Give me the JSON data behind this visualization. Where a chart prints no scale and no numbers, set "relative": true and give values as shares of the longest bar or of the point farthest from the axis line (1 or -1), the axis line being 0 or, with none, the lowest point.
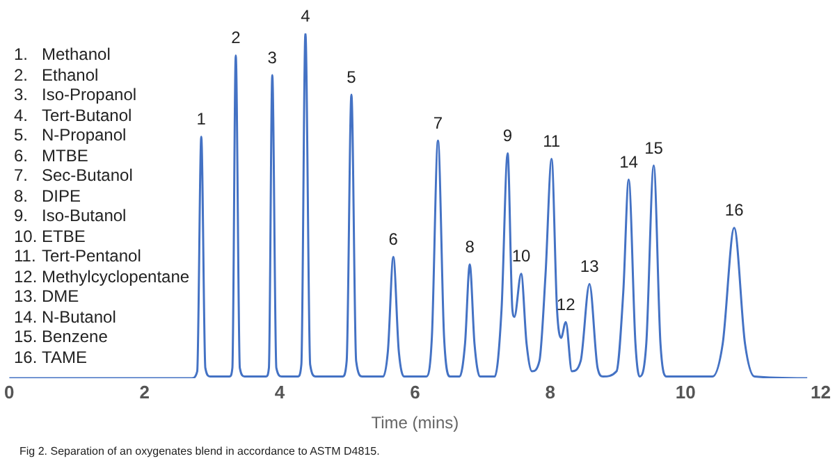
{
  "chart_data": {
    "type": "line",
    "relative": true,
    "xlabel": "Time (mins)",
    "xlim": [
      0,
      12
    ],
    "xticks": [
      0,
      2,
      4,
      6,
      8,
      10,
      12
    ],
    "grid": false,
    "legend": false,
    "marker": "none",
    "line_style": "solid",
    "series": [
      {
        "color": "#4472c4",
        "x": [
          0,
          2.7,
          2.78,
          2.84,
          2.9,
          2.97,
          3.26,
          3.3,
          3.35,
          3.41,
          3.48,
          3.8,
          3.84,
          3.89,
          3.95,
          4.03,
          4.27,
          4.32,
          4.38,
          4.45,
          4.53,
          4.93,
          4.99,
          5.06,
          5.13,
          5.22,
          5.53,
          5.6,
          5.68,
          5.76,
          5.84,
          6.17,
          6.25,
          6.34,
          6.43,
          6.52,
          6.66,
          6.74,
          6.81,
          6.88,
          6.96,
          7.18,
          7.28,
          7.37,
          7.44,
          7.47,
          7.57,
          7.65,
          7.73,
          7.84,
          7.93,
          8.02,
          8.1,
          8.16,
          8.23,
          8.32,
          8.45,
          8.58,
          8.7,
          8.78,
          8.98,
          9.08,
          9.16,
          9.26,
          9.32,
          9.42,
          9.53,
          9.63,
          9.72,
          10.4,
          10.55,
          10.72,
          10.88,
          11.02,
          11.8
        ],
        "values": [
          0,
          0,
          0.02,
          0.7,
          0.03,
          0.005,
          0.005,
          0.03,
          0.936,
          0.03,
          0.005,
          0.005,
          0.03,
          0.879,
          0.03,
          0.005,
          0.005,
          0.04,
          1,
          0.04,
          0.005,
          0.005,
          0.05,
          0.822,
          0.05,
          0.005,
          0.005,
          0.08,
          0.352,
          0.08,
          0.005,
          0.005,
          0.12,
          0.689,
          0.12,
          0.005,
          0.005,
          0.1,
          0.33,
          0.1,
          0.005,
          0.005,
          0.2,
          0.652,
          0.2,
          0.178,
          0.303,
          0.1,
          0.02,
          0.05,
          0.3,
          0.636,
          0.2,
          0.117,
          0.163,
          0.02,
          0.05,
          0.273,
          0.03,
          0.005,
          0.02,
          0.25,
          0.576,
          0.1,
          0.005,
          0.1,
          0.617,
          0.1,
          0.005,
          0.005,
          0.1,
          0.436,
          0.1,
          0.005,
          0
        ]
      }
    ],
    "annotations": [
      {
        "text": "1",
        "x": 2.84,
        "y": 0.7
      },
      {
        "text": "2",
        "x": 3.35,
        "y": 0.936
      },
      {
        "text": "3",
        "x": 3.89,
        "y": 0.879
      },
      {
        "text": "4",
        "x": 4.38,
        "y": 1
      },
      {
        "text": "5",
        "x": 5.06,
        "y": 0.822
      },
      {
        "text": "6",
        "x": 5.68,
        "y": 0.352
      },
      {
        "text": "7",
        "x": 6.34,
        "y": 0.689
      },
      {
        "text": "8",
        "x": 6.81,
        "y": 0.33
      },
      {
        "text": "9",
        "x": 7.37,
        "y": 0.652
      },
      {
        "text": "10",
        "x": 7.57,
        "y": 0.303
      },
      {
        "text": "11",
        "x": 8.02,
        "y": 0.636
      },
      {
        "text": "12",
        "x": 8.23,
        "y": 0.163
      },
      {
        "text": "13",
        "x": 8.58,
        "y": 0.273
      },
      {
        "text": "14",
        "x": 9.16,
        "y": 0.576
      },
      {
        "text": "15",
        "x": 9.53,
        "y": 0.617
      },
      {
        "text": "16",
        "x": 10.72,
        "y": 0.436
      },
      "1.\tMethanol",
      "2.\tEthanol",
      "3.\tIso-Propanol",
      "4.\tTert-Butanol",
      "5.\tN-Propanol",
      "6.\tMTBE",
      "7.\tSec-Butanol",
      "8.\tDIPE",
      "9.\tIso-Butanol",
      "10.\tETBE",
      "11.\tTert-Pentanol",
      "12.\tMethylcyclopentane",
      "13.\tDME",
      "14.\tN-Butanol",
      "15.\tBenzene",
      "16.\tTAME",
      "Fig 2. Separation of an oxygenates blend in accordance to ASTM D4815."
    ]
  }
}
